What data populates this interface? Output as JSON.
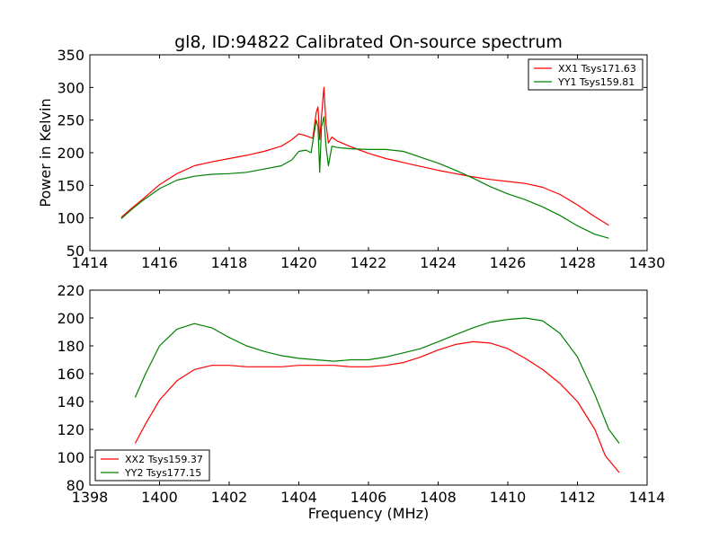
{
  "figure": {
    "title": "gl8, ID:94822 Calibrated On-source spectrum"
  },
  "chart_data": [
    {
      "type": "line",
      "title": "gl8, ID:94822 Calibrated On-source spectrum",
      "xlabel": "",
      "ylabel": "Power in Kelvin",
      "xlim": [
        1414,
        1430
      ],
      "ylim": [
        50,
        350
      ],
      "x_ticks": [
        "1414",
        "1416",
        "1418",
        "1420",
        "1422",
        "1424",
        "1426",
        "1428",
        "1430"
      ],
      "y_ticks": [
        "50",
        "100",
        "150",
        "200",
        "250",
        "300",
        "350"
      ],
      "legend_position": "top-right",
      "grid": false,
      "series": [
        {
          "name": "XX1 Tsys171.63",
          "color": "#ff0000",
          "points": [
            [
              1414.9,
              101
            ],
            [
              1415.2,
              115
            ],
            [
              1415.5,
              128
            ],
            [
              1416.0,
              151
            ],
            [
              1416.5,
              168
            ],
            [
              1417.0,
              180
            ],
            [
              1417.5,
              186
            ],
            [
              1418.0,
              191
            ],
            [
              1418.5,
              196
            ],
            [
              1419.0,
              202
            ],
            [
              1419.5,
              210
            ],
            [
              1419.8,
              220
            ],
            [
              1420.0,
              229
            ],
            [
              1420.2,
              226
            ],
            [
              1420.4,
              222
            ],
            [
              1420.5,
              262
            ],
            [
              1420.55,
              270
            ],
            [
              1420.6,
              220
            ],
            [
              1420.65,
              255
            ],
            [
              1420.72,
              300
            ],
            [
              1420.78,
              245
            ],
            [
              1420.85,
              215
            ],
            [
              1420.95,
              224
            ],
            [
              1421.1,
              218
            ],
            [
              1421.5,
              209
            ],
            [
              1422.0,
              199
            ],
            [
              1422.5,
              191
            ],
            [
              1423.0,
              185
            ],
            [
              1423.5,
              179
            ],
            [
              1424.0,
              173
            ],
            [
              1424.5,
              168
            ],
            [
              1425.0,
              163
            ],
            [
              1425.5,
              159
            ],
            [
              1426.0,
              156
            ],
            [
              1426.5,
              153
            ],
            [
              1427.0,
              147
            ],
            [
              1427.5,
              136
            ],
            [
              1428.0,
              120
            ],
            [
              1428.5,
              102
            ],
            [
              1428.9,
              89
            ]
          ]
        },
        {
          "name": "YY1 Tsys159.81",
          "color": "#008000",
          "points": [
            [
              1414.9,
              99
            ],
            [
              1415.2,
              113
            ],
            [
              1415.5,
              126
            ],
            [
              1416.0,
              145
            ],
            [
              1416.5,
              158
            ],
            [
              1417.0,
              164
            ],
            [
              1417.5,
              167
            ],
            [
              1418.0,
              168
            ],
            [
              1418.5,
              170
            ],
            [
              1419.0,
              175
            ],
            [
              1419.5,
              180
            ],
            [
              1419.8,
              189
            ],
            [
              1420.0,
              202
            ],
            [
              1420.2,
              204
            ],
            [
              1420.35,
              200
            ],
            [
              1420.5,
              250
            ],
            [
              1420.55,
              240
            ],
            [
              1420.6,
              170
            ],
            [
              1420.65,
              240
            ],
            [
              1420.72,
              255
            ],
            [
              1420.78,
              210
            ],
            [
              1420.85,
              180
            ],
            [
              1420.95,
              210
            ],
            [
              1421.1,
              208
            ],
            [
              1421.5,
              206
            ],
            [
              1422.0,
              205
            ],
            [
              1422.5,
              205
            ],
            [
              1423.0,
              202
            ],
            [
              1423.5,
              193
            ],
            [
              1424.0,
              184
            ],
            [
              1424.5,
              173
            ],
            [
              1425.0,
              161
            ],
            [
              1425.5,
              148
            ],
            [
              1426.0,
              137
            ],
            [
              1426.5,
              128
            ],
            [
              1427.0,
              117
            ],
            [
              1427.5,
              104
            ],
            [
              1428.0,
              88
            ],
            [
              1428.5,
              75
            ],
            [
              1428.9,
              69
            ]
          ]
        }
      ]
    },
    {
      "type": "line",
      "title": "",
      "xlabel": "Frequency (MHz)",
      "ylabel": "",
      "xlim": [
        1398,
        1414
      ],
      "ylim": [
        80,
        220
      ],
      "x_ticks": [
        "1398",
        "1400",
        "1402",
        "1404",
        "1406",
        "1408",
        "1410",
        "1412",
        "1414"
      ],
      "y_ticks": [
        "80",
        "100",
        "120",
        "140",
        "160",
        "180",
        "200",
        "220"
      ],
      "legend_position": "bottom-left",
      "grid": false,
      "series": [
        {
          "name": "XX2 Tsys159.37",
          "color": "#ff0000",
          "points": [
            [
              1399.3,
              110
            ],
            [
              1399.6,
              124
            ],
            [
              1400.0,
              141
            ],
            [
              1400.5,
              155
            ],
            [
              1401.0,
              163
            ],
            [
              1401.5,
              166
            ],
            [
              1402.0,
              166
            ],
            [
              1402.5,
              165
            ],
            [
              1403.0,
              165
            ],
            [
              1403.5,
              165
            ],
            [
              1404.0,
              166
            ],
            [
              1404.5,
              166
            ],
            [
              1405.0,
              166
            ],
            [
              1405.5,
              165
            ],
            [
              1406.0,
              165
            ],
            [
              1406.5,
              166
            ],
            [
              1407.0,
              168
            ],
            [
              1407.5,
              172
            ],
            [
              1408.0,
              177
            ],
            [
              1408.5,
              181
            ],
            [
              1409.0,
              183
            ],
            [
              1409.5,
              182
            ],
            [
              1410.0,
              178
            ],
            [
              1410.5,
              171
            ],
            [
              1411.0,
              163
            ],
            [
              1411.5,
              153
            ],
            [
              1412.0,
              140
            ],
            [
              1412.5,
              120
            ],
            [
              1412.8,
              101
            ],
            [
              1413.2,
              89
            ]
          ]
        },
        {
          "name": "YY2 Tsys177.15",
          "color": "#008000",
          "points": [
            [
              1399.3,
              143
            ],
            [
              1399.6,
              160
            ],
            [
              1400.0,
              180
            ],
            [
              1400.5,
              192
            ],
            [
              1401.0,
              196
            ],
            [
              1401.5,
              193
            ],
            [
              1402.0,
              186
            ],
            [
              1402.5,
              180
            ],
            [
              1403.0,
              176
            ],
            [
              1403.5,
              173
            ],
            [
              1404.0,
              171
            ],
            [
              1404.5,
              170
            ],
            [
              1405.0,
              169
            ],
            [
              1405.5,
              170
            ],
            [
              1406.0,
              170
            ],
            [
              1406.5,
              172
            ],
            [
              1407.0,
              175
            ],
            [
              1407.5,
              178
            ],
            [
              1408.0,
              183
            ],
            [
              1408.5,
              188
            ],
            [
              1409.0,
              193
            ],
            [
              1409.5,
              197
            ],
            [
              1410.0,
              199
            ],
            [
              1410.5,
              200
            ],
            [
              1411.0,
              198
            ],
            [
              1411.5,
              189
            ],
            [
              1412.0,
              172
            ],
            [
              1412.5,
              145
            ],
            [
              1412.9,
              120
            ],
            [
              1413.2,
              110
            ]
          ]
        }
      ]
    }
  ]
}
